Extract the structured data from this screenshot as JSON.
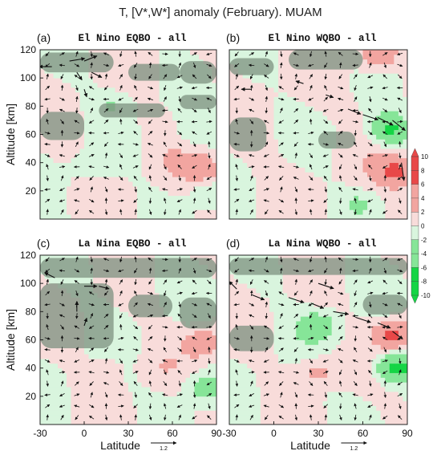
{
  "figure": {
    "title": "T, [V*,W*] anomaly (February). MUAM"
  },
  "colors": {
    "warm_weak": "#f8dcda",
    "warm_mid": "#f2a5a0",
    "warm_strong": "#e84848",
    "cool_weak": "#d9f5de",
    "cool_mid": "#86e598",
    "cool_strong": "#15d545",
    "gray_overlay": "#7c907f",
    "arrow": "#111111"
  },
  "chart_data": [
    {
      "type": "heatmap",
      "panel": "(a)",
      "title": "El Nino EQBO - all",
      "xlabel": "",
      "ylabel": "Altitude [km]",
      "xlim": [
        -30,
        90
      ],
      "ylim": [
        0,
        120
      ],
      "xticks": [],
      "yticks": [
        20,
        40,
        60,
        80,
        100,
        120
      ],
      "gray_regions": [
        {
          "x": [
            -30,
            20
          ],
          "y": [
            104,
            118
          ]
        },
        {
          "x": [
            30,
            65
          ],
          "y": [
            98,
            110
          ]
        },
        {
          "x": [
            65,
            90
          ],
          "y": [
            96,
            112
          ]
        },
        {
          "x": [
            -30,
            0
          ],
          "y": [
            56,
            76
          ]
        },
        {
          "x": [
            10,
            55
          ],
          "y": [
            72,
            82
          ]
        },
        {
          "x": [
            65,
            90
          ],
          "y": [
            78,
            88
          ]
        }
      ],
      "temperature_features": [
        {
          "x": 20,
          "y": 82,
          "value": -2
        },
        {
          "x": 5,
          "y": 38,
          "value": -2
        },
        {
          "x": 75,
          "y": 62,
          "value": -2
        },
        {
          "x": 82,
          "y": 36,
          "value": 4
        },
        {
          "x": 60,
          "y": 40,
          "value": 1
        },
        {
          "x": 85,
          "y": 18,
          "value": -2
        }
      ],
      "vectors": [
        {
          "lat": -10,
          "alt": 112,
          "v": 6,
          "w": 1
        },
        {
          "lat": 0,
          "alt": 112,
          "v": 5,
          "w": 2
        },
        {
          "lat": 5,
          "alt": 104,
          "v": 4,
          "w": -2
        },
        {
          "lat": -5,
          "alt": 104,
          "v": 2,
          "w": -3
        },
        {
          "lat": -22,
          "alt": 108,
          "v": -5,
          "w": 0
        },
        {
          "lat": 0,
          "alt": 92,
          "v": 1,
          "w": -3
        }
      ],
      "anomaly_bias": 0.2,
      "vector_reference": "1.2"
    },
    {
      "type": "heatmap",
      "panel": "(b)",
      "title": "El Nino WQBO - all",
      "xlabel": "",
      "ylabel": "",
      "xlim": [
        -30,
        90
      ],
      "ylim": [
        0,
        120
      ],
      "xticks": [],
      "yticks": [],
      "gray_regions": [
        {
          "x": [
            -30,
            0
          ],
          "y": [
            102,
            114
          ]
        },
        {
          "x": [
            10,
            60
          ],
          "y": [
            106,
            120
          ]
        },
        {
          "x": [
            -30,
            -5
          ],
          "y": [
            48,
            72
          ]
        },
        {
          "x": [
            30,
            55
          ],
          "y": [
            50,
            62
          ]
        }
      ],
      "temperature_features": [
        {
          "x": 78,
          "y": 64,
          "value": -7
        },
        {
          "x": 82,
          "y": 34,
          "value": 7
        },
        {
          "x": 70,
          "y": 115,
          "value": 4
        },
        {
          "x": 58,
          "y": 12,
          "value": -2
        },
        {
          "x": 30,
          "y": 60,
          "value": -1
        }
      ],
      "vectors": [
        {
          "lat": 50,
          "alt": 78,
          "v": 5,
          "w": -2
        },
        {
          "lat": 60,
          "alt": 74,
          "v": 6,
          "w": -2
        },
        {
          "lat": 70,
          "alt": 72,
          "v": 6,
          "w": -3
        },
        {
          "lat": 80,
          "alt": 70,
          "v": 5,
          "w": -4
        },
        {
          "lat": 35,
          "alt": 88,
          "v": 3,
          "w": -1
        },
        {
          "lat": 20,
          "alt": 96,
          "v": -3,
          "w": 1
        },
        {
          "lat": -15,
          "alt": 92,
          "v": -4,
          "w": 0
        },
        {
          "lat": 86,
          "alt": 40,
          "v": 1,
          "w": -7
        }
      ],
      "anomaly_bias": 0.3,
      "vector_reference": "1.2"
    },
    {
      "type": "heatmap",
      "panel": "(c)",
      "title": "La Nina EQBO - all",
      "xlabel": "Latitude",
      "ylabel": "Altitude [km]",
      "xlim": [
        -30,
        90
      ],
      "ylim": [
        0,
        120
      ],
      "xticks": [
        -30,
        0,
        30,
        60,
        90
      ],
      "yticks": [
        20,
        40,
        60,
        80,
        100,
        120
      ],
      "gray_regions": [
        {
          "x": [
            -30,
            90
          ],
          "y": [
            104,
            118
          ]
        },
        {
          "x": [
            -30,
            20
          ],
          "y": [
            54,
            100
          ]
        },
        {
          "x": [
            30,
            60
          ],
          "y": [
            76,
            92
          ]
        },
        {
          "x": [
            65,
            90
          ],
          "y": [
            68,
            90
          ]
        }
      ],
      "temperature_features": [
        {
          "x": 82,
          "y": 58,
          "value": 4
        },
        {
          "x": 82,
          "y": 26,
          "value": -4
        },
        {
          "x": 50,
          "y": 40,
          "value": 1
        },
        {
          "x": 20,
          "y": 44,
          "value": 1
        }
      ],
      "vectors": [
        {
          "lat": 0,
          "alt": 98,
          "v": 5,
          "w": 0
        },
        {
          "lat": 10,
          "alt": 98,
          "v": 4,
          "w": -1
        },
        {
          "lat": -5,
          "alt": 80,
          "v": 0,
          "w": 4
        },
        {
          "lat": 0,
          "alt": 70,
          "v": 1,
          "w": 3
        },
        {
          "lat": -20,
          "alt": 104,
          "v": -4,
          "w": 2
        }
      ],
      "anomaly_bias": 0.1,
      "vector_reference": "1.2"
    },
    {
      "type": "heatmap",
      "panel": "(d)",
      "title": "La Nina WQBO - all",
      "xlabel": "Latitude",
      "ylabel": "",
      "xlim": [
        -30,
        90
      ],
      "ylim": [
        0,
        120
      ],
      "xticks": [
        -30,
        0,
        30,
        60,
        90
      ],
      "yticks": [],
      "gray_regions": [
        {
          "x": [
            -30,
            90
          ],
          "y": [
            106,
            118
          ]
        },
        {
          "x": [
            -30,
            0
          ],
          "y": [
            52,
            70
          ]
        },
        {
          "x": [
            60,
            90
          ],
          "y": [
            78,
            92
          ]
        }
      ],
      "temperature_features": [
        {
          "x": 82,
          "y": 40,
          "value": -8
        },
        {
          "x": 80,
          "y": 64,
          "value": 7
        },
        {
          "x": 30,
          "y": 70,
          "value": -4
        },
        {
          "x": 30,
          "y": 38,
          "value": 3
        },
        {
          "x": 60,
          "y": 56,
          "value": -1
        }
      ],
      "vectors": [
        {
          "lat": -25,
          "alt": 96,
          "v": -3,
          "w": 3
        },
        {
          "lat": -15,
          "alt": 92,
          "v": 5,
          "w": -2
        },
        {
          "lat": 10,
          "alt": 90,
          "v": 6,
          "w": -2
        },
        {
          "lat": 25,
          "alt": 86,
          "v": 5,
          "w": -2
        },
        {
          "lat": 40,
          "alt": 80,
          "v": 6,
          "w": -1
        },
        {
          "lat": 55,
          "alt": 76,
          "v": 6,
          "w": -2
        },
        {
          "lat": 70,
          "alt": 72,
          "v": 5,
          "w": -2
        },
        {
          "lat": 80,
          "alt": 66,
          "v": 4,
          "w": -3
        },
        {
          "lat": 30,
          "alt": 100,
          "v": 6,
          "w": -2
        }
      ],
      "anomaly_bias": 0.1,
      "vector_reference": "1.2"
    }
  ],
  "colorbar": {
    "ticks": [
      "10",
      "8",
      "6",
      "4",
      "2",
      "0",
      "-2",
      "-4",
      "-6",
      "-8",
      "-10"
    ],
    "levels": [
      10,
      8,
      6,
      4,
      2,
      0,
      -2,
      -4,
      -6,
      -8,
      -10
    ]
  }
}
